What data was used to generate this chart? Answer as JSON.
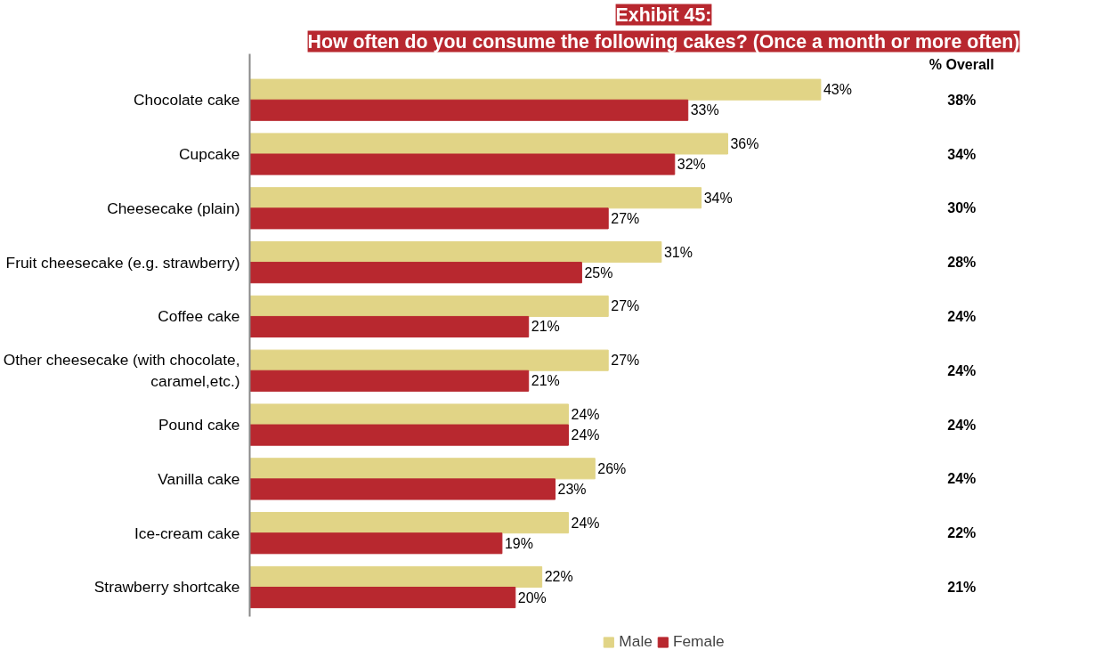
{
  "chart_data": {
    "type": "bar",
    "orientation": "horizontal",
    "title": "Exhibit 45:",
    "subtitle": "How often do you consume the following cakes? (Once a month or more often)",
    "categories": [
      "Chocolate cake",
      "Cupcake",
      "Cheesecake (plain)",
      "Fruit cheesecake (e.g. strawberry)",
      "Coffee cake",
      "Other cheesecake (with chocolate, caramel,etc.)",
      "Pound cake",
      "Vanilla cake",
      "Ice-cream cake",
      "Strawberry shortcake"
    ],
    "series": [
      {
        "name": "Male",
        "color": "#e1d486",
        "values": [
          43,
          36,
          34,
          31,
          27,
          27,
          24,
          26,
          24,
          22
        ],
        "value_labels": [
          "43%",
          "36%",
          "34%",
          "31%",
          "27%",
          "27%",
          "24%",
          "26%",
          "24%",
          "22%"
        ]
      },
      {
        "name": "Female",
        "color": "#b8282f",
        "values": [
          33,
          32,
          27,
          25,
          21,
          21,
          24,
          23,
          19,
          20
        ],
        "value_labels": [
          "33%",
          "32%",
          "27%",
          "25%",
          "21%",
          "21%",
          "24%",
          "23%",
          "19%",
          "20%"
        ]
      }
    ],
    "tick_labels": "y",
    "grid": false,
    "legend": "bottom",
    "annotations": [
      "% Overall",
      "38%",
      "34%",
      "30%",
      "28%",
      "24%",
      "24%",
      "24%",
      "24%",
      "22%",
      "21%"
    ]
  }
}
